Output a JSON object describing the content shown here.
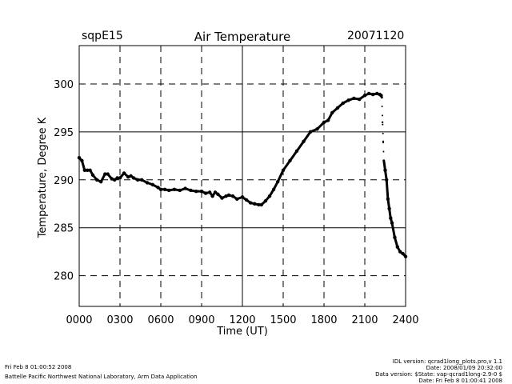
{
  "header": {
    "site": "sqpE15",
    "date": "20071120"
  },
  "footer": {
    "left_line1": "Fri Feb  8 01:00:52 2008",
    "left_line2": "Battelle Pacific Northwest National Laboratory, Arm Data Application",
    "right_line1": "IDL version: qcrad1long_plots.pro,v 1.1",
    "right_line2": "Date: 2008/01/09 20:32:00",
    "right_line3": "Data version: $State: vap-qcrad1long-2.9-0 $",
    "right_line4": "Date: Fri Feb  8 01:00:41 2008"
  },
  "chart_data": {
    "type": "scatter",
    "title": "Air Temperature",
    "xlabel": "Time (UT)",
    "ylabel": "Temperature, Degree K",
    "x_unit": "hours UT",
    "xlim": [
      0,
      24
    ],
    "ylim": [
      276.8,
      304
    ],
    "x_ticks": [
      0,
      3,
      6,
      9,
      12,
      15,
      18,
      21,
      24
    ],
    "x_tick_labels": [
      "0000",
      "0300",
      "0600",
      "0900",
      "1200",
      "1500",
      "1800",
      "2100",
      "2400"
    ],
    "y_ticks": [
      280,
      285,
      290,
      295,
      300
    ],
    "y_tick_labels": [
      "280",
      "285",
      "290",
      "295",
      "300"
    ],
    "grid": true,
    "marker_color": "#000000",
    "series": [
      {
        "x": [
          0,
          0.2,
          0.4,
          0.6,
          0.8,
          1.0,
          1.3,
          1.6,
          1.9,
          2.1,
          2.4,
          2.6,
          2.8,
          3.0,
          3.3,
          3.6,
          3.8,
          4.0,
          4.3,
          4.6,
          5.0,
          5.4,
          5.8,
          6.0,
          6.3,
          6.6,
          7.0,
          7.4,
          7.8,
          8.2,
          8.6,
          9.0,
          9.3,
          9.6,
          9.8,
          10.0,
          10.2,
          10.5,
          10.8,
          11.0,
          11.3,
          11.6,
          12.0,
          12.3,
          12.6,
          12.9,
          13.2,
          13.4,
          13.7,
          14.0,
          14.3,
          14.6,
          15.0,
          15.5,
          16.0,
          16.5,
          17.0,
          17.5,
          18.0,
          18.3,
          18.6,
          19.0,
          19.4,
          19.8,
          20.2,
          20.6,
          21.0,
          21.3,
          21.6,
          21.9,
          22.1,
          22.2,
          22.25,
          22.3,
          22.35,
          22.4,
          22.5,
          22.6,
          22.7,
          22.8,
          22.9,
          23.0,
          23.2,
          23.4,
          23.6,
          23.8,
          24.0
        ],
        "y": [
          292.3,
          292.0,
          291.0,
          291.0,
          291.0,
          290.5,
          290.0,
          289.8,
          290.6,
          290.6,
          290.1,
          290.0,
          290.2,
          290.2,
          290.7,
          290.3,
          290.4,
          290.2,
          290.0,
          290.0,
          289.7,
          289.5,
          289.2,
          289.0,
          289.0,
          288.9,
          289.0,
          288.9,
          289.1,
          288.9,
          288.8,
          288.8,
          288.6,
          288.7,
          288.3,
          288.7,
          288.5,
          288.1,
          288.3,
          288.4,
          288.3,
          288.0,
          288.2,
          287.9,
          287.6,
          287.5,
          287.4,
          287.4,
          287.8,
          288.3,
          289.0,
          289.8,
          291.0,
          292.0,
          293.0,
          294.0,
          295.0,
          295.3,
          296.0,
          296.2,
          297.0,
          297.5,
          298.0,
          298.3,
          298.5,
          298.4,
          298.8,
          299.0,
          298.9,
          299.0,
          298.9,
          298.8,
          298.6,
          296.0,
          294.0,
          292.0,
          291.0,
          290.0,
          288.0,
          287.0,
          286.0,
          285.5,
          284.0,
          283.0,
          282.5,
          282.3,
          282.0
        ]
      }
    ]
  }
}
